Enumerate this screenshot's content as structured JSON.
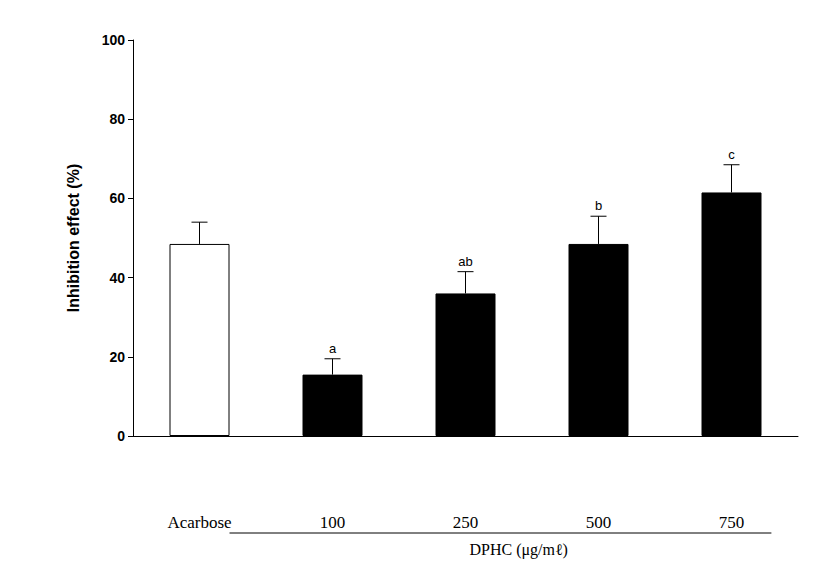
{
  "chart_data": {
    "type": "bar",
    "categories": [
      "Acarbose",
      "100",
      "250",
      "500",
      "750"
    ],
    "values": [
      48.5,
      15.5,
      36,
      48.5,
      61.5
    ],
    "errors": [
      5.5,
      4,
      5.5,
      7,
      7
    ],
    "annotations": [
      null,
      "a",
      "ab",
      "b",
      "c"
    ],
    "colors": [
      "#ffffff",
      "#000000",
      "#000000",
      "#000000",
      "#000000"
    ],
    "ylabel": "Inhibition effect (%)",
    "xlabel": "DPHC (μg/mℓ)",
    "ylim": [
      0,
      100
    ],
    "yticks": [
      0,
      20,
      40,
      60,
      80,
      100
    ],
    "grid": false
  }
}
